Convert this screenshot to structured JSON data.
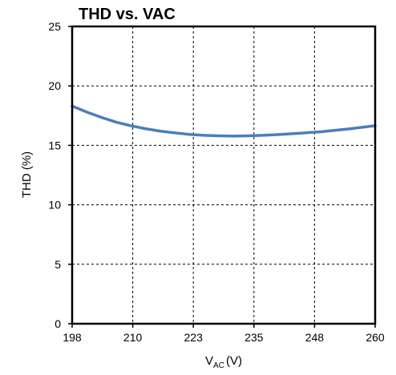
{
  "chart_data": {
    "type": "line",
    "title": "THD vs. VAC",
    "xlabel": {
      "main": "V",
      "sub": "AC",
      "unit": "(V)"
    },
    "ylabel": "THD (%)",
    "xlim": [
      198,
      260
    ],
    "ylim": [
      0,
      25
    ],
    "x_tick_labels": [
      "198",
      "210",
      "223",
      "235",
      "248",
      "260"
    ],
    "y_tick_labels": [
      "0",
      "5",
      "10",
      "15",
      "20",
      "25"
    ],
    "grid": true,
    "series": [
      {
        "color": "#4a7ebb",
        "x": [
          198,
          201,
          204,
          207,
          210,
          213,
          216,
          219,
          222,
          225,
          228,
          231,
          234,
          237,
          240,
          243,
          246,
          249,
          252,
          255,
          258,
          260
        ],
        "y": [
          18.3,
          17.8,
          17.35,
          16.95,
          16.65,
          16.4,
          16.2,
          16.05,
          15.92,
          15.84,
          15.8,
          15.78,
          15.8,
          15.84,
          15.9,
          15.98,
          16.06,
          16.15,
          16.27,
          16.4,
          16.55,
          16.65
        ]
      }
    ]
  }
}
